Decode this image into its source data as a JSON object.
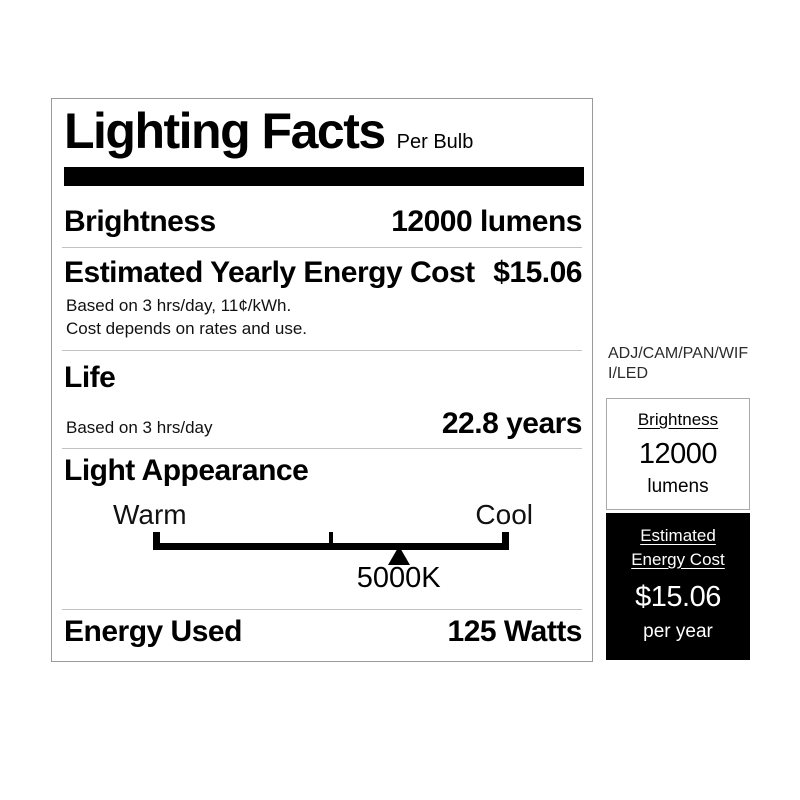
{
  "label": {
    "title": "Lighting Facts",
    "subtitle": "Per Bulb",
    "brightness": {
      "label": "Brightness",
      "value": "12000 lumens"
    },
    "energy_cost": {
      "label": "Estimated Yearly Energy Cost",
      "value": "$15.06",
      "note_line1": "Based on 3 hrs/day, 11¢/kWh.",
      "note_line2": "Cost depends on rates and use."
    },
    "life": {
      "heading": "Life",
      "basis": "Based on 3 hrs/day",
      "value": "22.8 years"
    },
    "light_appearance": {
      "heading": "Light Appearance",
      "warm_label": "Warm",
      "cool_label": "Cool",
      "marker_value": "5000K",
      "marker_position_pct": 69
    },
    "energy_used": {
      "label": "Energy Used",
      "value": "125 Watts"
    }
  },
  "side_panel": {
    "model_text": "ADJ/CAM/PAN/WIF\nI/LED",
    "brightness_card": {
      "title": "Brightness",
      "value": "12000",
      "unit": "lumens"
    },
    "energy_card": {
      "title": "Estimated\nEnergy Cost",
      "value": "$15.06",
      "unit": "per year"
    }
  },
  "colors": {
    "text": "#000000",
    "background": "#ffffff",
    "bar": "#000000",
    "divider": "#c2c2c2",
    "border": "#9b9b9b"
  }
}
